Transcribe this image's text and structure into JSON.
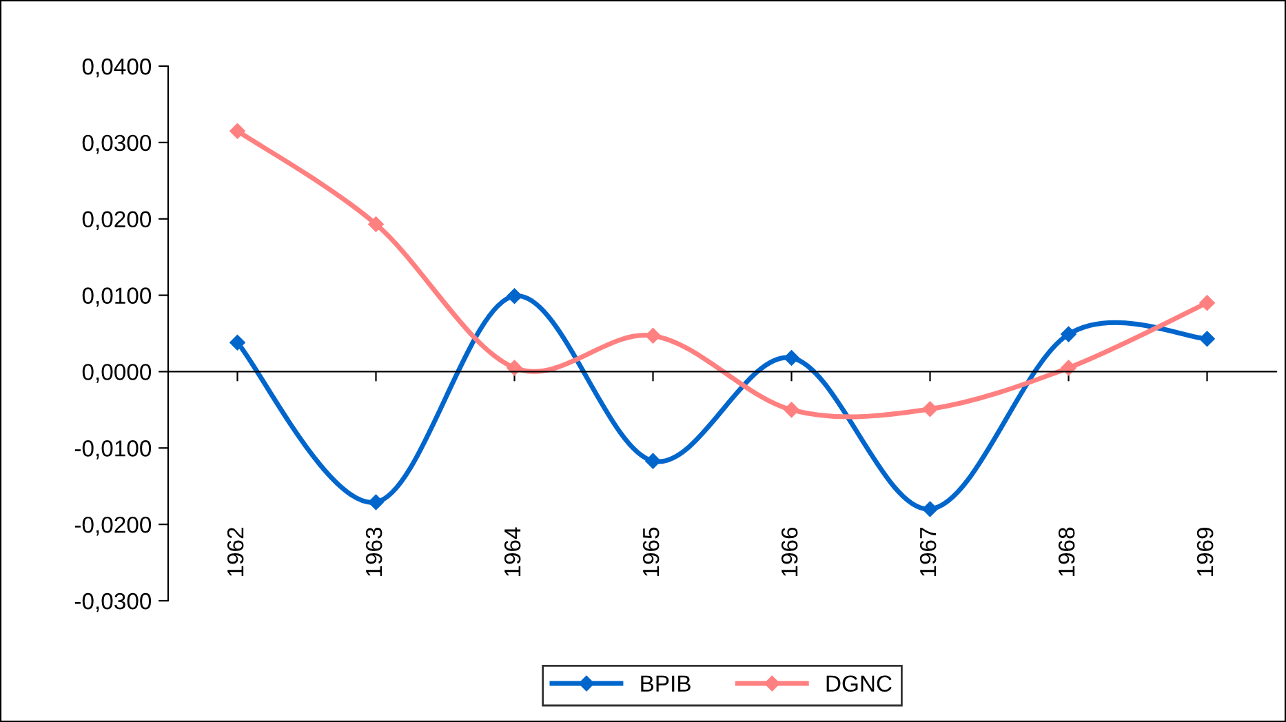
{
  "chart_data": {
    "type": "line",
    "categories": [
      "1962",
      "1963",
      "1964",
      "1965",
      "1966",
      "1967",
      "1968",
      "1969"
    ],
    "series": [
      {
        "name": "BPIB",
        "color": "#0066cc",
        "values": [
          0.0038,
          -0.0171,
          0.0099,
          -0.0117,
          0.0018,
          -0.018,
          0.0049,
          0.0043
        ]
      },
      {
        "name": "DGNC",
        "color": "#ff8080",
        "values": [
          0.0315,
          0.0193,
          0.0005,
          0.0047,
          -0.005,
          -0.0049,
          0.0005,
          0.009
        ]
      }
    ],
    "ylim": [
      -0.03,
      0.04
    ],
    "yticks": [
      {
        "value": -0.03,
        "label": "-0,0300"
      },
      {
        "value": -0.02,
        "label": "-0,0200"
      },
      {
        "value": -0.01,
        "label": "-0,0100"
      },
      {
        "value": 0,
        "label": "0,0000"
      },
      {
        "value": 0.01,
        "label": "0,0100"
      },
      {
        "value": 0.02,
        "label": "0,0200"
      },
      {
        "value": 0.03,
        "label": "0,0300"
      },
      {
        "value": 0.04,
        "label": "0,0400"
      }
    ],
    "legend": "bottom",
    "marker": "diamond",
    "line_style": "solid"
  }
}
